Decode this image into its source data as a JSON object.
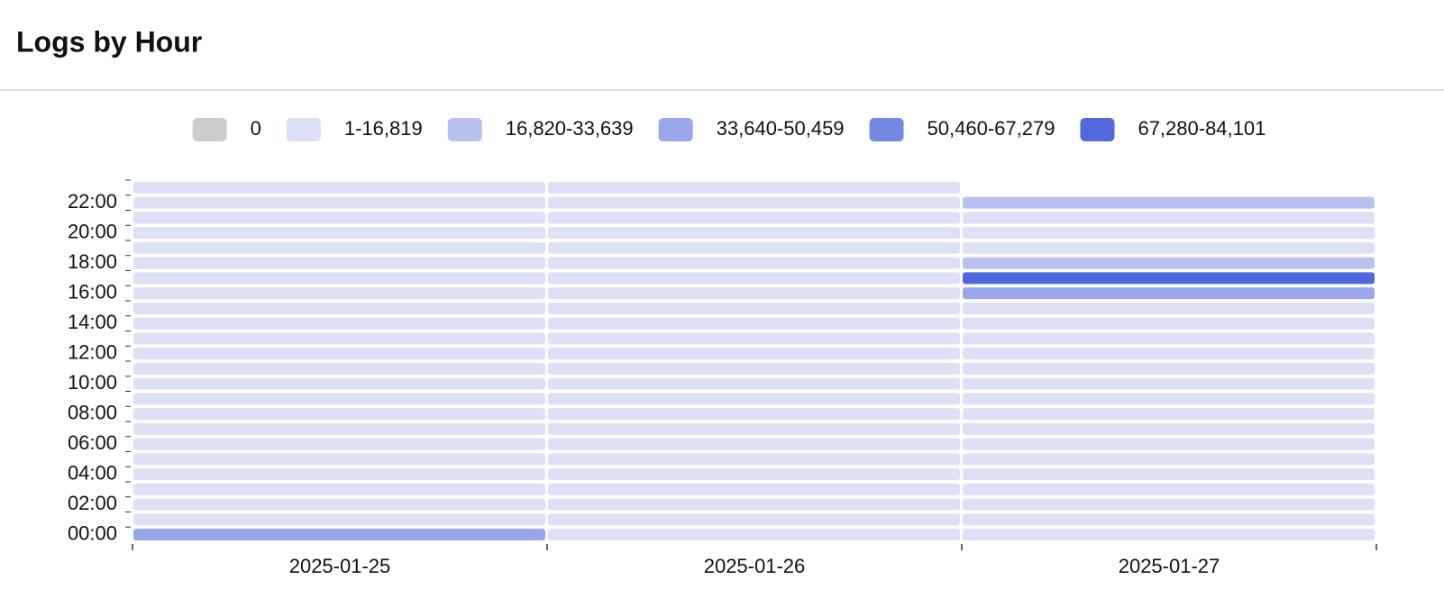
{
  "chart_data": {
    "type": "heatmap",
    "title": "Logs by Hour",
    "x": [
      "2025-01-25",
      "2025-01-26",
      "2025-01-27"
    ],
    "y": [
      "00:00",
      null,
      "02:00",
      null,
      "04:00",
      null,
      "06:00",
      null,
      "08:00",
      null,
      "10:00",
      null,
      "12:00",
      null,
      "14:00",
      null,
      "16:00",
      null,
      "18:00",
      null,
      "20:00",
      null,
      "22:00",
      null
    ],
    "legend": [
      {
        "label": "0",
        "min": 0,
        "max": 0,
        "color": "#cccccc"
      },
      {
        "label": "1-16,819",
        "min": 1,
        "max": 16819,
        "color": "#dde1f7"
      },
      {
        "label": "16,820-33,639",
        "min": 16820,
        "max": 33639,
        "color": "#b9c1f0"
      },
      {
        "label": "33,640-50,459",
        "min": 33640,
        "max": 50459,
        "color": "#98a8eb"
      },
      {
        "label": "50,460-67,279",
        "min": 50460,
        "max": 67279,
        "color": "#7589e3"
      },
      {
        "label": "67,280-84,101",
        "min": 67280,
        "max": 84101,
        "color": "#5069dd"
      }
    ],
    "values": [
      [
        42000,
        8000,
        8000,
        8000,
        8000,
        8000,
        8000,
        8000,
        8000,
        8000,
        8000,
        8000,
        8000,
        8000,
        8000,
        8000,
        8000,
        8000,
        8000,
        8000,
        8000,
        8000,
        8000,
        8000
      ],
      [
        8000,
        8000,
        8000,
        8000,
        8000,
        8000,
        8000,
        8000,
        8000,
        8000,
        8000,
        8000,
        8000,
        8000,
        8000,
        8000,
        8000,
        8000,
        8000,
        8000,
        8000,
        8000,
        8000,
        8000
      ],
      [
        8000,
        8000,
        8000,
        8000,
        8000,
        8000,
        8000,
        8000,
        8000,
        8000,
        8000,
        8000,
        8000,
        8000,
        8000,
        8000,
        42000,
        76000,
        25000,
        8000,
        8000,
        8000,
        25000,
        null
      ]
    ]
  }
}
